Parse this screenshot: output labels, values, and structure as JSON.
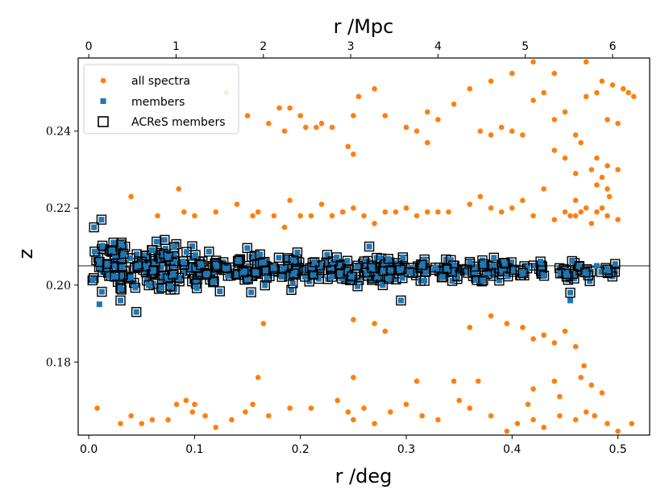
{
  "chart_data": {
    "type": "scatter",
    "title": "",
    "xlabel": "r /deg",
    "ylabel": "z",
    "top_xlabel": "r /Mpc",
    "xlim": [
      -0.01,
      0.53
    ],
    "ylim": [
      0.161,
      0.259
    ],
    "x_ticks": [
      0.0,
      0.1,
      0.2,
      0.3,
      0.4,
      0.5
    ],
    "x_tick_labels": [
      "0.0",
      "0.1",
      "0.2",
      "0.3",
      "0.4",
      "0.5"
    ],
    "y_ticks": [
      0.18,
      0.2,
      0.22,
      0.24
    ],
    "y_tick_labels": [
      "0.18",
      "0.20",
      "0.22",
      "0.24"
    ],
    "top_x_ticks_mpc": [
      0,
      1,
      2,
      3,
      4,
      5,
      6
    ],
    "top_x_tick_labels": [
      "0",
      "1",
      "2",
      "3",
      "4",
      "5",
      "6"
    ],
    "deg_per_mpc": 0.0825,
    "reference_line": {
      "z": 0.205,
      "color": "#808080"
    },
    "legend": {
      "placement": "top-left",
      "entries": [
        {
          "label": "all spectra",
          "marker": "circle",
          "color": "#ff7f0e"
        },
        {
          "label": "members",
          "marker": "square",
          "color": "#1f77b4"
        },
        {
          "label": "ACReS members",
          "marker": "open-square",
          "color": "#000000"
        }
      ]
    },
    "series": [
      {
        "name": "all spectra",
        "color": "#ff7f0e",
        "marker": "circle",
        "points": [
          [
            0.008,
            0.168
          ],
          [
            0.03,
            0.164
          ],
          [
            0.04,
            0.166
          ],
          [
            0.05,
            0.164
          ],
          [
            0.06,
            0.165
          ],
          [
            0.075,
            0.165
          ],
          [
            0.083,
            0.169
          ],
          [
            0.092,
            0.17
          ],
          [
            0.098,
            0.167
          ],
          [
            0.11,
            0.166
          ],
          [
            0.12,
            0.163
          ],
          [
            0.135,
            0.165
          ],
          [
            0.148,
            0.167
          ],
          [
            0.155,
            0.169
          ],
          [
            0.17,
            0.166
          ],
          [
            0.19,
            0.168
          ],
          [
            0.21,
            0.168
          ],
          [
            0.235,
            0.17
          ],
          [
            0.245,
            0.167
          ],
          [
            0.25,
            0.165
          ],
          [
            0.26,
            0.168
          ],
          [
            0.27,
            0.164
          ],
          [
            0.285,
            0.167
          ],
          [
            0.3,
            0.169
          ],
          [
            0.315,
            0.166
          ],
          [
            0.33,
            0.165
          ],
          [
            0.35,
            0.17
          ],
          [
            0.36,
            0.168
          ],
          [
            0.38,
            0.166
          ],
          [
            0.395,
            0.162
          ],
          [
            0.405,
            0.164
          ],
          [
            0.42,
            0.165
          ],
          [
            0.43,
            0.163
          ],
          [
            0.445,
            0.166
          ],
          [
            0.46,
            0.165
          ],
          [
            0.47,
            0.167
          ],
          [
            0.478,
            0.166
          ],
          [
            0.49,
            0.164
          ],
          [
            0.5,
            0.162
          ],
          [
            0.513,
            0.164
          ],
          [
            0.16,
            0.176
          ],
          [
            0.25,
            0.176
          ],
          [
            0.31,
            0.175
          ],
          [
            0.345,
            0.175
          ],
          [
            0.368,
            0.175
          ],
          [
            0.42,
            0.173
          ],
          [
            0.44,
            0.175
          ],
          [
            0.465,
            0.176
          ],
          [
            0.475,
            0.174
          ],
          [
            0.485,
            0.172
          ],
          [
            0.415,
            0.169
          ],
          [
            0.445,
            0.171
          ],
          [
            0.1,
            0.169
          ],
          [
            0.165,
            0.19
          ],
          [
            0.25,
            0.191
          ],
          [
            0.27,
            0.19
          ],
          [
            0.28,
            0.188
          ],
          [
            0.36,
            0.189
          ],
          [
            0.38,
            0.192
          ],
          [
            0.395,
            0.19
          ],
          [
            0.41,
            0.189
          ],
          [
            0.42,
            0.186
          ],
          [
            0.43,
            0.187
          ],
          [
            0.44,
            0.185
          ],
          [
            0.45,
            0.188
          ],
          [
            0.46,
            0.184
          ],
          [
            0.468,
            0.179
          ],
          [
            0.04,
            0.223
          ],
          [
            0.065,
            0.218
          ],
          [
            0.085,
            0.225
          ],
          [
            0.09,
            0.219
          ],
          [
            0.1,
            0.218
          ],
          [
            0.12,
            0.219
          ],
          [
            0.14,
            0.221
          ],
          [
            0.155,
            0.218
          ],
          [
            0.16,
            0.219
          ],
          [
            0.175,
            0.218
          ],
          [
            0.185,
            0.215
          ],
          [
            0.19,
            0.222
          ],
          [
            0.2,
            0.218
          ],
          [
            0.21,
            0.218
          ],
          [
            0.22,
            0.221
          ],
          [
            0.23,
            0.218
          ],
          [
            0.24,
            0.219
          ],
          [
            0.25,
            0.22
          ],
          [
            0.26,
            0.218
          ],
          [
            0.27,
            0.216
          ],
          [
            0.28,
            0.219
          ],
          [
            0.29,
            0.219
          ],
          [
            0.3,
            0.22
          ],
          [
            0.31,
            0.218
          ],
          [
            0.32,
            0.219
          ],
          [
            0.33,
            0.219
          ],
          [
            0.34,
            0.219
          ],
          [
            0.36,
            0.221
          ],
          [
            0.37,
            0.223
          ],
          [
            0.38,
            0.22
          ],
          [
            0.39,
            0.219
          ],
          [
            0.4,
            0.22
          ],
          [
            0.41,
            0.222
          ],
          [
            0.42,
            0.218
          ],
          [
            0.43,
            0.225
          ],
          [
            0.44,
            0.217
          ],
          [
            0.45,
            0.219
          ],
          [
            0.46,
            0.218
          ],
          [
            0.47,
            0.22
          ],
          [
            0.48,
            0.219
          ],
          [
            0.49,
            0.218
          ],
          [
            0.5,
            0.217
          ],
          [
            0.455,
            0.218
          ],
          [
            0.465,
            0.219
          ],
          [
            0.475,
            0.216
          ],
          [
            0.485,
            0.22
          ],
          [
            0.492,
            0.223
          ],
          [
            0.46,
            0.222
          ],
          [
            0.13,
            0.25
          ],
          [
            0.17,
            0.242
          ],
          [
            0.15,
            0.244
          ],
          [
            0.18,
            0.246
          ],
          [
            0.19,
            0.246
          ],
          [
            0.185,
            0.24
          ],
          [
            0.2,
            0.244
          ],
          [
            0.205,
            0.241
          ],
          [
            0.215,
            0.241
          ],
          [
            0.22,
            0.242
          ],
          [
            0.23,
            0.241
          ],
          [
            0.245,
            0.236
          ],
          [
            0.25,
            0.244
          ],
          [
            0.255,
            0.249
          ],
          [
            0.27,
            0.251
          ],
          [
            0.28,
            0.244
          ],
          [
            0.3,
            0.241
          ],
          [
            0.31,
            0.24
          ],
          [
            0.32,
            0.245
          ],
          [
            0.33,
            0.243
          ],
          [
            0.345,
            0.247
          ],
          [
            0.36,
            0.251
          ],
          [
            0.37,
            0.24
          ],
          [
            0.38,
            0.239
          ],
          [
            0.39,
            0.241
          ],
          [
            0.4,
            0.24
          ],
          [
            0.41,
            0.239
          ],
          [
            0.42,
            0.248
          ],
          [
            0.43,
            0.25
          ],
          [
            0.44,
            0.243
          ],
          [
            0.45,
            0.245
          ],
          [
            0.46,
            0.239
          ],
          [
            0.47,
            0.249
          ],
          [
            0.48,
            0.25
          ],
          [
            0.49,
            0.243
          ],
          [
            0.5,
            0.242
          ],
          [
            0.505,
            0.251
          ],
          [
            0.51,
            0.25
          ],
          [
            0.38,
            0.253
          ],
          [
            0.4,
            0.255
          ],
          [
            0.42,
            0.258
          ],
          [
            0.44,
            0.255
          ],
          [
            0.47,
            0.258
          ],
          [
            0.485,
            0.253
          ],
          [
            0.495,
            0.252
          ],
          [
            0.515,
            0.249
          ],
          [
            0.25,
            0.234
          ],
          [
            0.32,
            0.237
          ],
          [
            0.44,
            0.235
          ],
          [
            0.45,
            0.233
          ],
          [
            0.48,
            0.233
          ],
          [
            0.49,
            0.231
          ],
          [
            0.5,
            0.23
          ],
          [
            0.475,
            0.23
          ],
          [
            0.485,
            0.228
          ],
          [
            0.49,
            0.225
          ],
          [
            0.48,
            0.226
          ],
          [
            0.465,
            0.237
          ],
          [
            0.46,
            0.229
          ]
        ]
      },
      {
        "name": "members",
        "color": "#1f77b4",
        "marker": "square",
        "clusters": [
          {
            "x_range": [
              0.003,
              0.1
            ],
            "z_range": [
              0.196,
              0.214
            ],
            "count": 140
          },
          {
            "x_range": [
              0.1,
              0.2
            ],
            "z_range": [
              0.197,
              0.211
            ],
            "count": 110
          },
          {
            "x_range": [
              0.2,
              0.3
            ],
            "z_range": [
              0.199,
              0.209
            ],
            "count": 100
          },
          {
            "x_range": [
              0.3,
              0.4
            ],
            "z_range": [
              0.2,
              0.208
            ],
            "count": 75
          },
          {
            "x_range": [
              0.4,
              0.5
            ],
            "z_range": [
              0.2,
              0.207
            ],
            "count": 50
          }
        ],
        "extra_points": [
          [
            0.005,
            0.215
          ],
          [
            0.012,
            0.217
          ],
          [
            0.01,
            0.195
          ],
          [
            0.03,
            0.196
          ],
          [
            0.045,
            0.193
          ],
          [
            0.295,
            0.196
          ],
          [
            0.455,
            0.196
          ],
          [
            0.455,
            0.198
          ],
          [
            0.265,
            0.21
          ],
          [
            0.36,
            0.206
          ],
          [
            0.48,
            0.205
          ],
          [
            0.49,
            0.204
          ]
        ]
      }
    ]
  }
}
